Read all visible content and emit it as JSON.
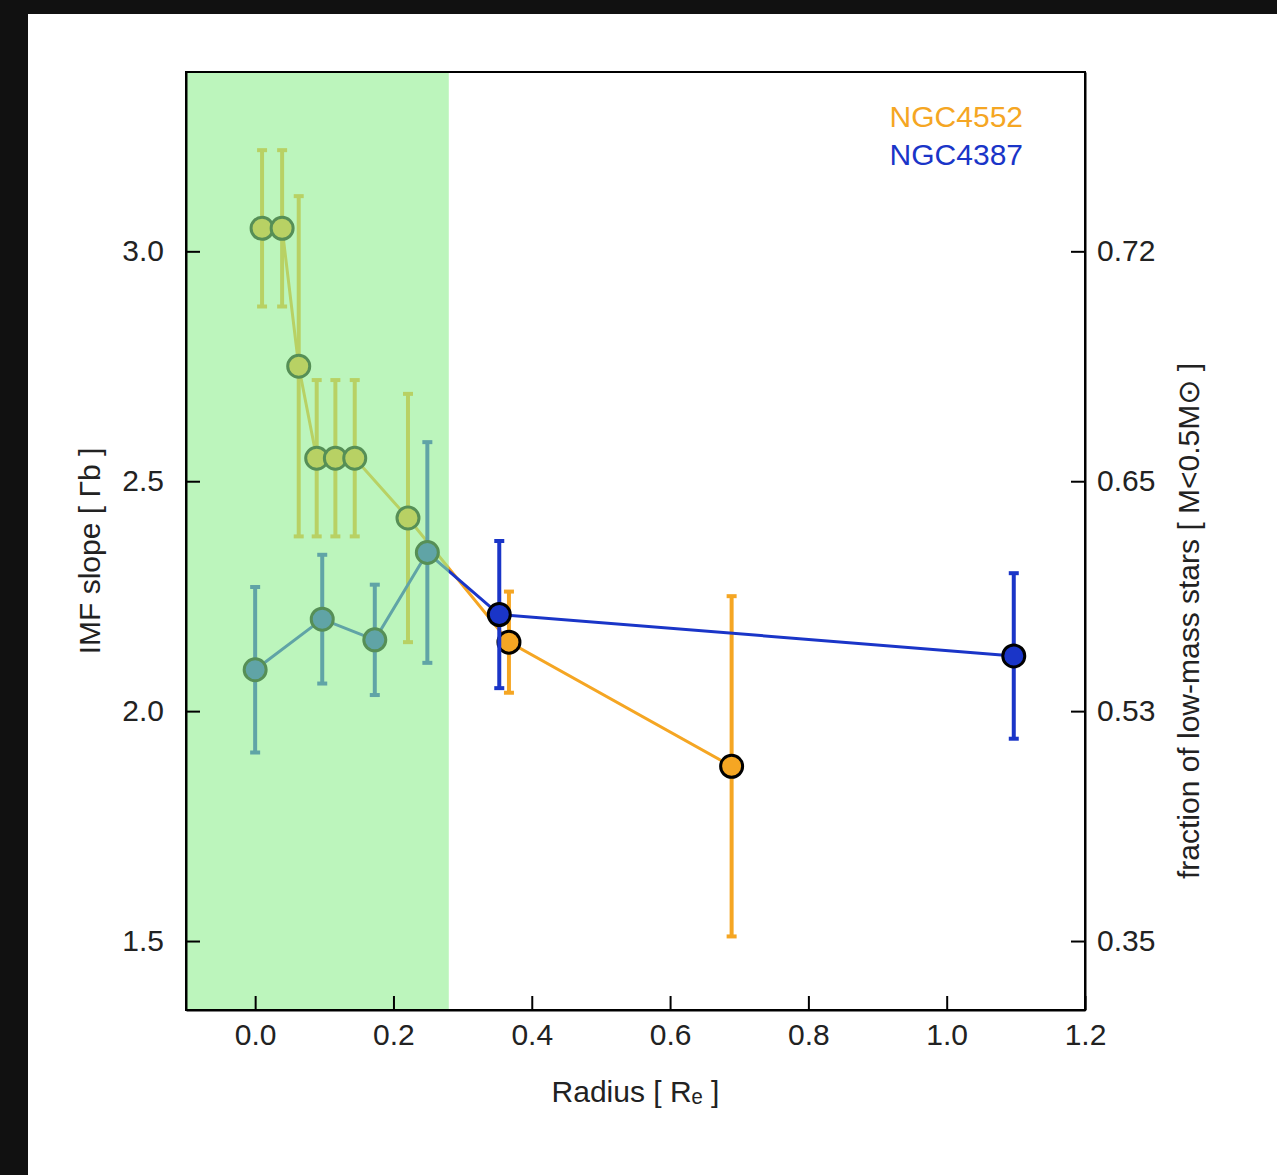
{
  "chart_data": {
    "type": "line",
    "xlabel": "Radius [ Rₑ ]",
    "ylabel": "IMF slope [ Γb ]",
    "y2label": "fraction of low-mass stars [ M<0.5M⊙ ]",
    "xlim": [
      -0.1,
      1.2
    ],
    "xticks": [
      {
        "value": 0,
        "label": "0.0"
      },
      0.2,
      0.4,
      0.6,
      0.8,
      {
        "value": 1,
        "label": "1.0"
      },
      1.2
    ],
    "ylim": [
      1.35,
      3.39
    ],
    "yticks": [
      1.5,
      {
        "value": 2,
        "label": "2.0"
      },
      2.5,
      {
        "value": 3,
        "label": "3.0"
      }
    ],
    "y2lim": [
      0.3,
      0.77
    ],
    "y2ticks": [
      0.35,
      0.53,
      0.65,
      0.72
    ],
    "legend": "top-right",
    "marker": "circle",
    "highlight_region": {
      "x": [
        -0.1,
        0.28
      ],
      "color": "#90ee90"
    },
    "series": [
      {
        "name": "NGC4552",
        "color": "#f5a623",
        "x": [
          0.01,
          0.039,
          0.063,
          0.089,
          0.116,
          0.144,
          0.221,
          0.367,
          0.689
        ],
        "values": [
          3.05,
          3.05,
          2.75,
          2.55,
          2.55,
          2.55,
          2.42,
          2.15,
          1.88
        ],
        "errors": [
          0.17,
          0.17,
          0.37,
          0.17,
          0.17,
          0.17,
          0.27,
          0.11,
          0.37
        ]
      },
      {
        "name": "NGC4387",
        "color": "#1a35c8",
        "x": [
          0.0,
          0.097,
          0.173,
          0.249,
          0.353,
          1.097
        ],
        "values": [
          2.09,
          2.2,
          2.155,
          2.345,
          2.21,
          2.12
        ],
        "errors": [
          0.18,
          0.14,
          0.12,
          0.24,
          0.16,
          0.18
        ]
      }
    ]
  }
}
